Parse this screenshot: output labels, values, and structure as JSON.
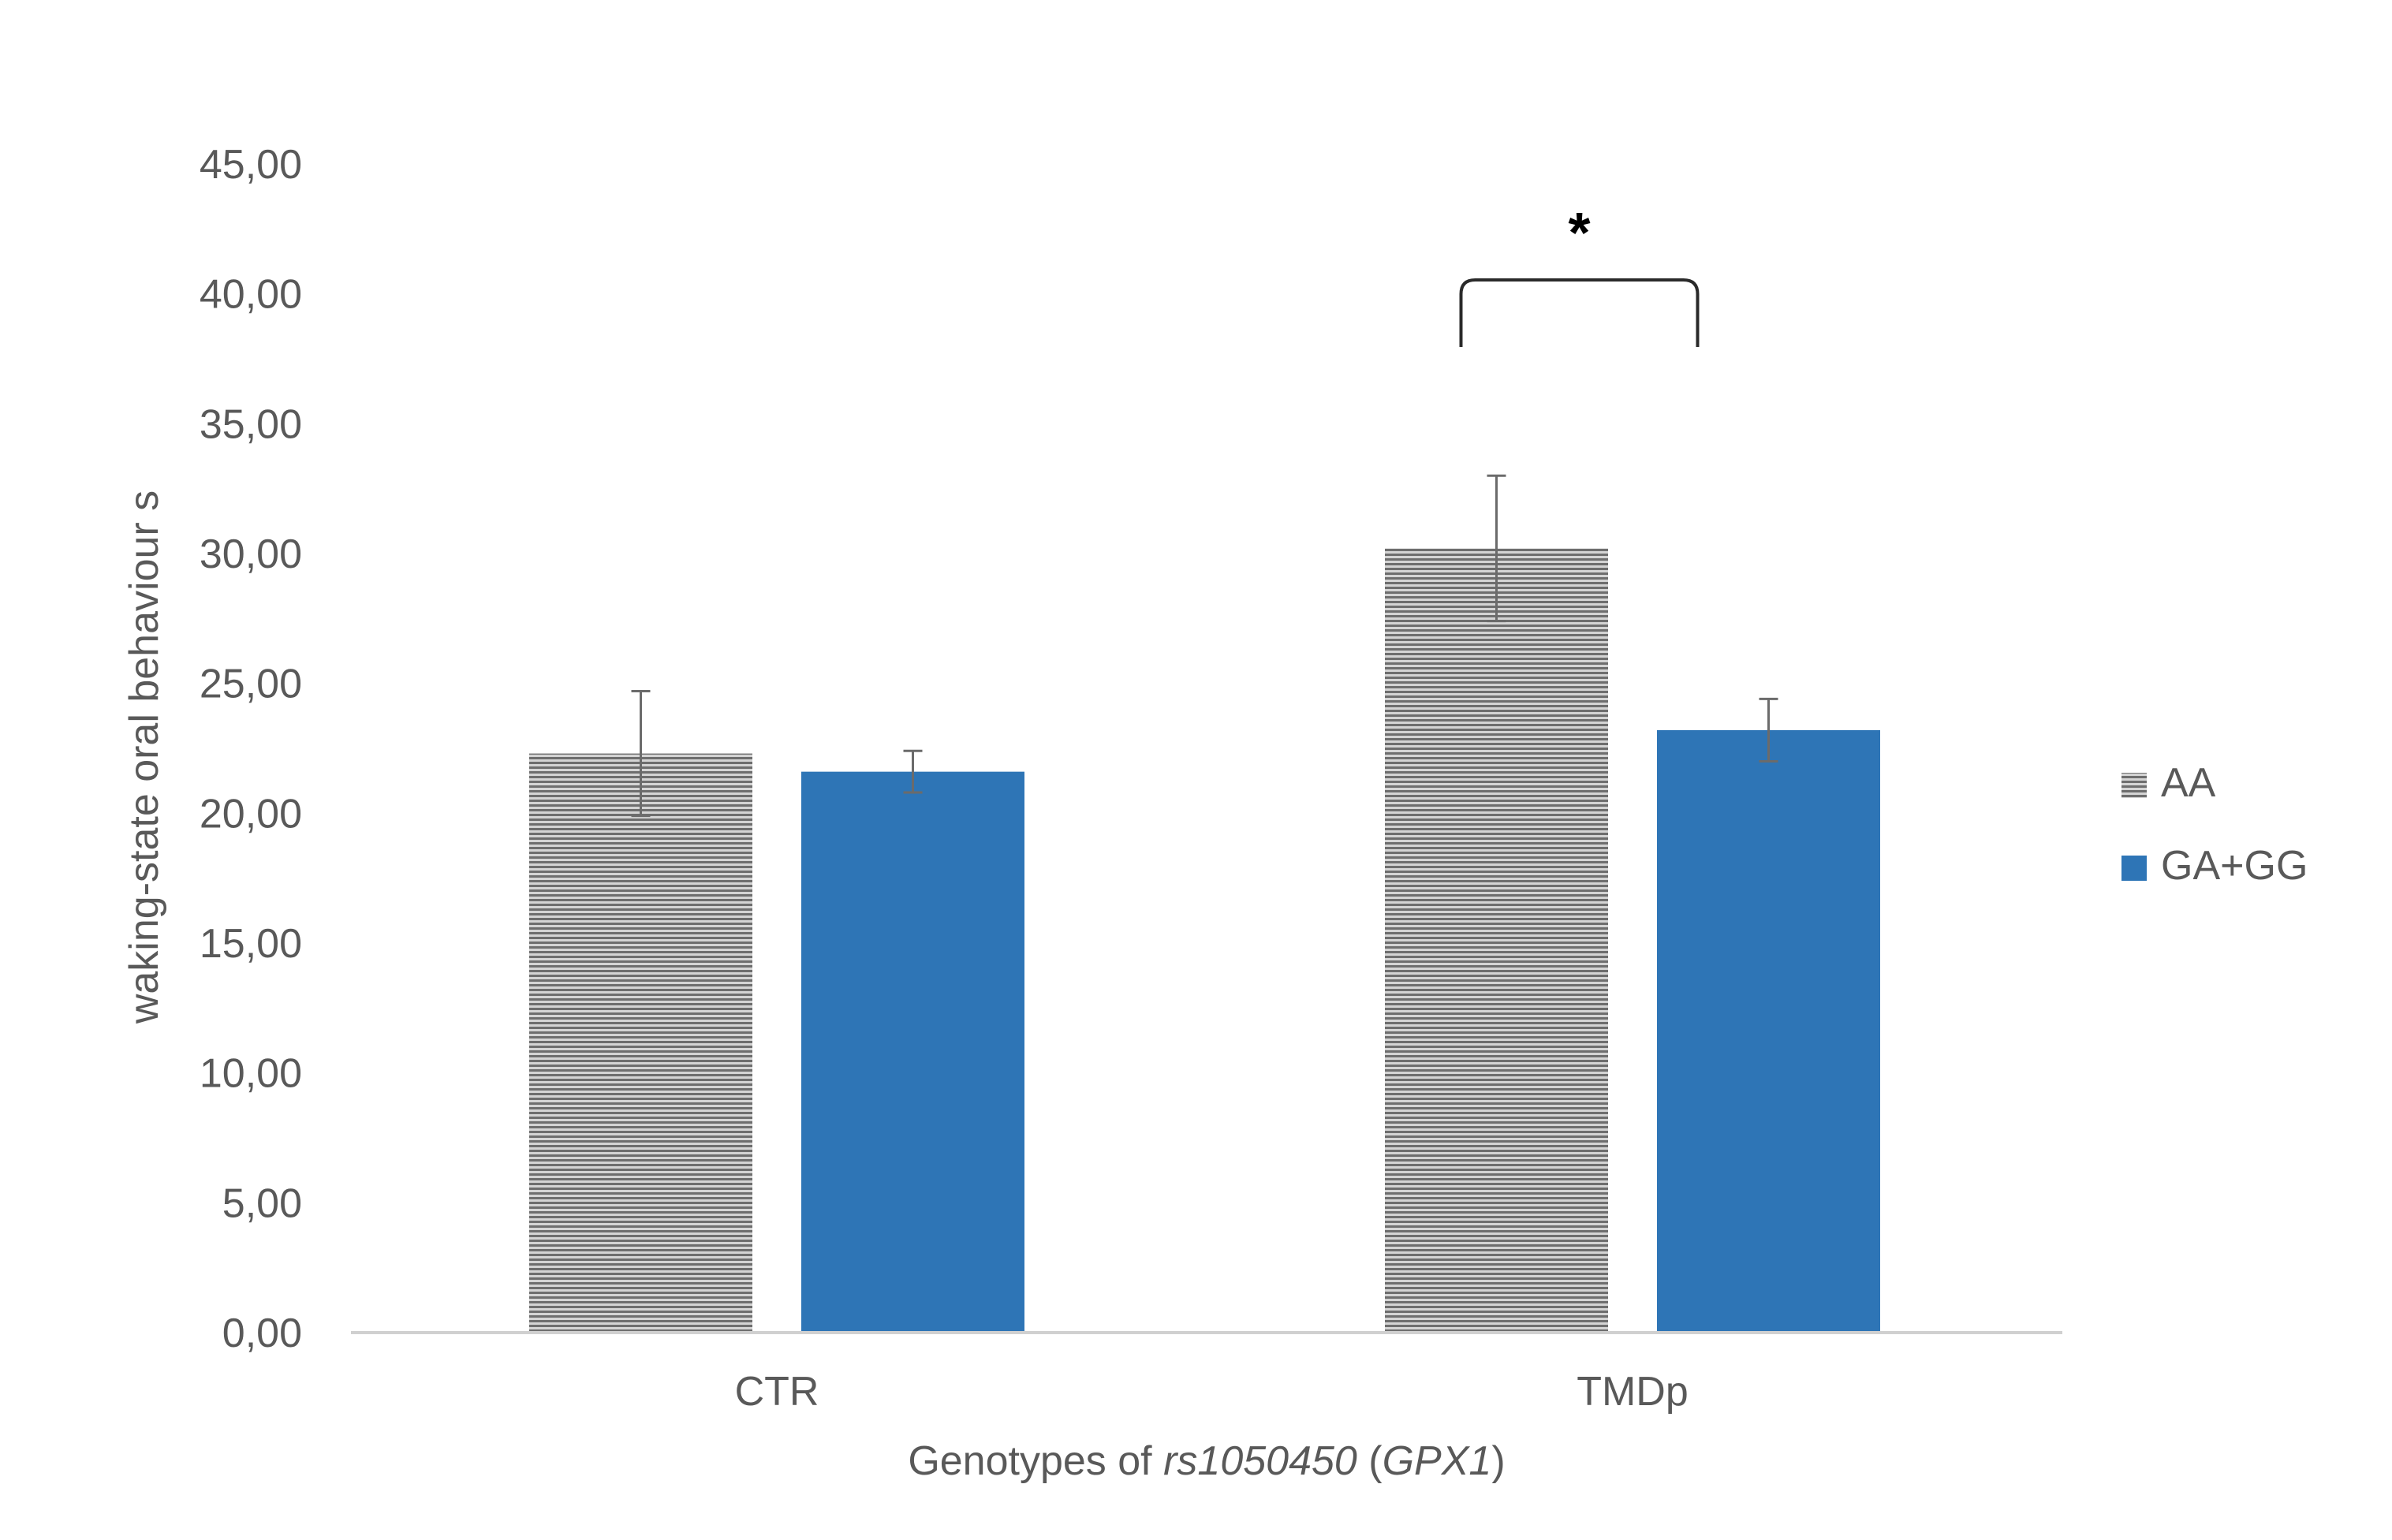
{
  "chart_data": {
    "type": "bar",
    "categories": [
      "CTR",
      "TMDp"
    ],
    "series": [
      {
        "name": "AA",
        "values": [
          22.3,
          30.2
        ],
        "errors": [
          2.4,
          2.8
        ],
        "color": "#808080",
        "pattern": "horizontal-lines"
      },
      {
        "name": "GA+GG",
        "values": [
          21.6,
          23.2
        ],
        "errors": [
          0.8,
          1.2
        ],
        "color": "#2E75B6"
      }
    ],
    "title": "",
    "xlabel_parts": [
      {
        "text": "Genotypes of ",
        "italic": false
      },
      {
        "text": "rs1050450",
        "italic": true
      },
      {
        "text": " (",
        "italic": false
      },
      {
        "text": "GPX1",
        "italic": true
      },
      {
        "text": ")",
        "italic": false
      }
    ],
    "ylabel": "waking-state oral behaviour s",
    "ylim": [
      0,
      45
    ],
    "yticks": [
      "0,00",
      "5,00",
      "10,00",
      "15,00",
      "20,00",
      "25,00",
      "30,00",
      "35,00",
      "40,00",
      "45,00"
    ],
    "grid": false,
    "legend": {
      "position": "right"
    },
    "annotations": [
      {
        "text": "*",
        "category": "TMDp",
        "between_series": [
          "AA",
          "GA+GG"
        ]
      }
    ]
  }
}
